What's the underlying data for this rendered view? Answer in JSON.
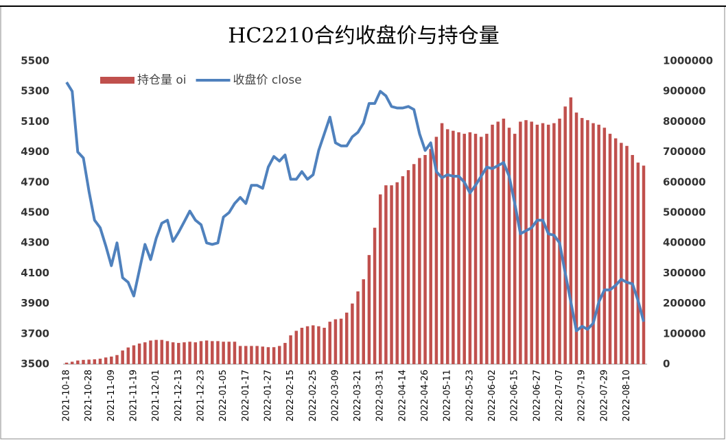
{
  "chart_data": {
    "type": "bar_line",
    "title": "HC2210合约收盘价与持仓量",
    "categories": [
      "2021-10-18",
      null,
      null,
      null,
      "2021-10-28",
      null,
      null,
      null,
      "2021-11-09",
      null,
      null,
      null,
      "2021-11-19",
      null,
      null,
      null,
      "2021-12-01",
      null,
      null,
      null,
      "2021-12-13",
      null,
      null,
      null,
      "2021-12-23",
      null,
      null,
      null,
      "2022-01-05",
      null,
      null,
      null,
      "2022-01-17",
      null,
      null,
      null,
      "2022-01-27",
      null,
      null,
      null,
      "2022-02-15",
      null,
      null,
      null,
      "2022-02-25",
      null,
      null,
      null,
      "2022-03-09",
      null,
      null,
      null,
      "2022-03-21",
      null,
      null,
      null,
      "2022-03-31",
      null,
      null,
      null,
      "2022-04-14",
      null,
      null,
      null,
      "2022-04-26",
      null,
      null,
      null,
      "2022-05-11",
      null,
      null,
      null,
      "2022-05-23",
      null,
      null,
      null,
      "2022-06-02",
      null,
      null,
      null,
      "2022-06-15",
      null,
      null,
      null,
      "2022-06-27",
      null,
      null,
      null,
      "2022-07-07",
      null,
      null,
      null,
      "2022-07-19",
      null,
      null,
      null,
      "2022-07-29",
      null,
      null,
      null,
      "2022-08-10",
      null,
      null,
      null
    ],
    "series": [
      {
        "name": "持仓量 oi",
        "type": "bar",
        "axis": "y2",
        "color": "#c0504d",
        "values": [
          5000,
          8000,
          12000,
          14000,
          15000,
          16000,
          18000,
          22000,
          25000,
          30000,
          45000,
          55000,
          62000,
          68000,
          72000,
          78000,
          80000,
          80000,
          76000,
          72000,
          70000,
          72000,
          74000,
          72000,
          76000,
          78000,
          76000,
          76000,
          74000,
          74000,
          74000,
          60000,
          60000,
          60000,
          60000,
          58000,
          56000,
          56000,
          60000,
          70000,
          95000,
          110000,
          120000,
          125000,
          128000,
          125000,
          120000,
          140000,
          148000,
          150000,
          170000,
          200000,
          240000,
          280000,
          360000,
          450000,
          560000,
          590000,
          590000,
          600000,
          620000,
          640000,
          660000,
          680000,
          690000,
          710000,
          750000,
          795000,
          775000,
          770000,
          765000,
          760000,
          765000,
          760000,
          750000,
          760000,
          790000,
          800000,
          810000,
          780000,
          760000,
          800000,
          805000,
          800000,
          790000,
          795000,
          790000,
          795000,
          810000,
          850000,
          880000,
          830000,
          812000,
          805000,
          795000,
          790000,
          780000,
          760000,
          745000,
          730000,
          720000,
          690000,
          665000,
          655000
        ]
      },
      {
        "name": "收盘价 close",
        "type": "line",
        "axis": "y",
        "color": "#4f81bd",
        "values": [
          5360,
          5300,
          4900,
          4860,
          4640,
          4450,
          4400,
          4280,
          4150,
          4300,
          4070,
          4040,
          3950,
          4120,
          4290,
          4190,
          4330,
          4430,
          4450,
          4310,
          4370,
          4440,
          4510,
          4450,
          4420,
          4300,
          4290,
          4300,
          4470,
          4500,
          4560,
          4600,
          4560,
          4680,
          4680,
          4660,
          4800,
          4870,
          4840,
          4880,
          4720,
          4720,
          4770,
          4720,
          4750,
          4910,
          5020,
          5130,
          4960,
          4940,
          4940,
          5000,
          5030,
          5090,
          5220,
          5220,
          5300,
          5270,
          5200,
          5190,
          5190,
          5200,
          5180,
          5020,
          4910,
          4960,
          4770,
          4730,
          4750,
          4740,
          4740,
          4700,
          4630,
          4680,
          4740,
          4800,
          4790,
          4810,
          4830,
          4740,
          4560,
          4360,
          4380,
          4400,
          4450,
          4450,
          4360,
          4350,
          4300,
          4100,
          3910,
          3720,
          3750,
          3730,
          3770,
          3910,
          3990,
          3990,
          4020,
          4060,
          4040,
          4030,
          3920,
          3780
        ]
      }
    ],
    "ylim": [
      3500,
      5500
    ],
    "yticks": [
      3500,
      3700,
      3900,
      4100,
      4300,
      4500,
      4700,
      4900,
      5100,
      5300,
      5500
    ],
    "y2lim": [
      0,
      1000000
    ],
    "y2ticks": [
      0,
      100000,
      200000,
      300000,
      400000,
      500000,
      600000,
      700000,
      800000,
      900000,
      1000000
    ],
    "legend": "top-left"
  }
}
